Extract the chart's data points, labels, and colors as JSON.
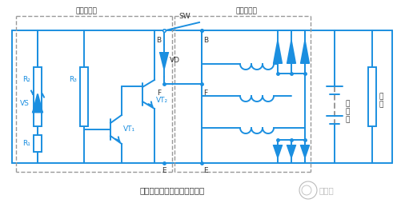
{
  "title": "外搭铁型电子调节器基本电路",
  "cc": "#1B8FE0",
  "bg": "#FFFFFF",
  "tc": "#333333",
  "dc": "#999999",
  "lw": 1.4,
  "lw_thin": 1.0,
  "label_reg": "电子调节器",
  "label_alt": "交流发电机",
  "label_SW": "SW",
  "label_VD": "VD",
  "label_VS": "VS",
  "label_VT1": "VT₁",
  "label_VT2": "VT₂",
  "label_R1": "R₁",
  "label_R2": "R₂",
  "label_R3": "R₃",
  "label_B": "B",
  "label_F": "F",
  "label_E": "E",
  "label_battery": "蓄电池",
  "label_load": "负载",
  "watermark": "日月辰"
}
